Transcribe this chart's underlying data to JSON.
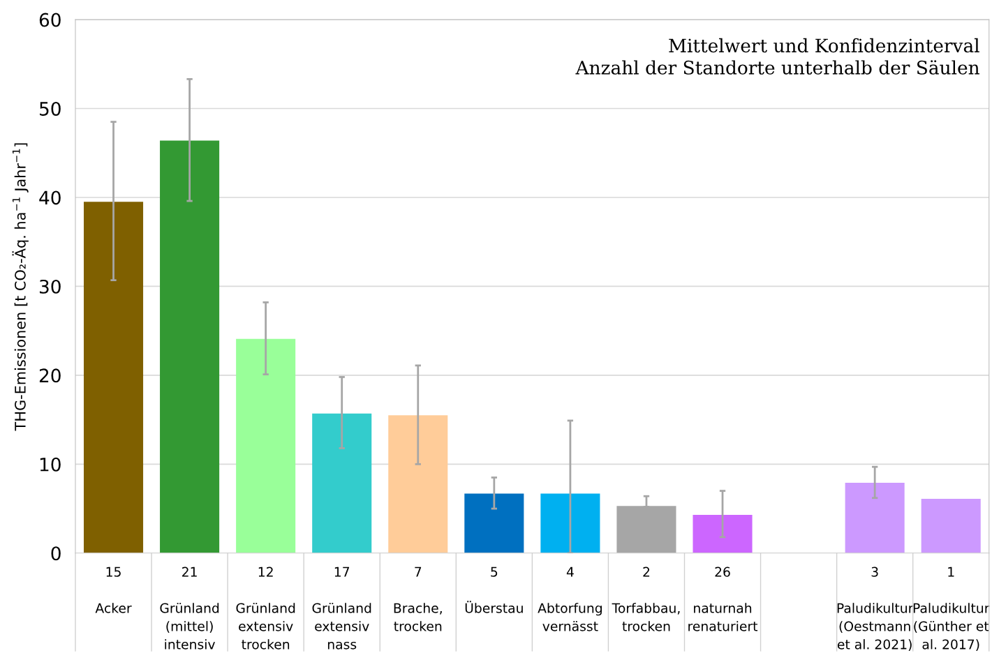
{
  "chart_data": {
    "type": "bar",
    "ylabel": "THG-Emissionen [t CO₂-Äq. ha$^{−1}$ Jahr$^{−1}$]",
    "annotations": [
      "Mittelwert und Konfidenzinterval\nAnzahl der Standorte unterhalb der Säulen"
    ],
    "categories": [
      "15\n\nAcker",
      "21\n\nGrünland\n(mittel)\nintensiv",
      "12\n\nGrünland\nextensiv\ntrocken",
      "17\n\nGrünland\nextensiv\nnass",
      "7\n\nBrache,\ntrocken",
      "5\n\nÜberstau",
      "4\n\nAbtorfung\nvernässt",
      "2\n\nTorfabbau,\ntrocken",
      "26\n\nnaturnah\nrenaturiert",
      null,
      "3\n\nPaludikultur\n(Oestmann\net al. 2021)",
      "1\n\nPaludikultur\n(Günther et\nal. 2017)"
    ],
    "values": [
      39.5,
      46.4,
      24.1,
      15.7,
      15.5,
      6.7,
      6.7,
      5.3,
      4.3,
      null,
      7.9,
      6.1
    ],
    "colors": [
      "#7f6000",
      "#339933",
      "#99ff99",
      "#33cccc",
      "#ffcc99",
      "#0070c0",
      "#00b0f0",
      "#a6a6a6",
      "#cc66ff",
      "#ffffff",
      "#cc99ff",
      "#cc99ff"
    ],
    "errors": [
      [
        30.7,
        48.5
      ],
      [
        39.6,
        53.3
      ],
      [
        20.1,
        28.2
      ],
      [
        11.8,
        19.8
      ],
      [
        10.0,
        21.1
      ],
      [
        5.0,
        8.5
      ],
      [
        0,
        14.9
      ],
      [
        5.2,
        6.4
      ],
      [
        1.8,
        7.0
      ],
      null,
      [
        6.2,
        9.7
      ],
      null
    ],
    "ylim": [
      0,
      60
    ],
    "yticks": [
      0,
      10,
      20,
      30,
      40,
      50,
      60
    ],
    "grid": "y"
  }
}
